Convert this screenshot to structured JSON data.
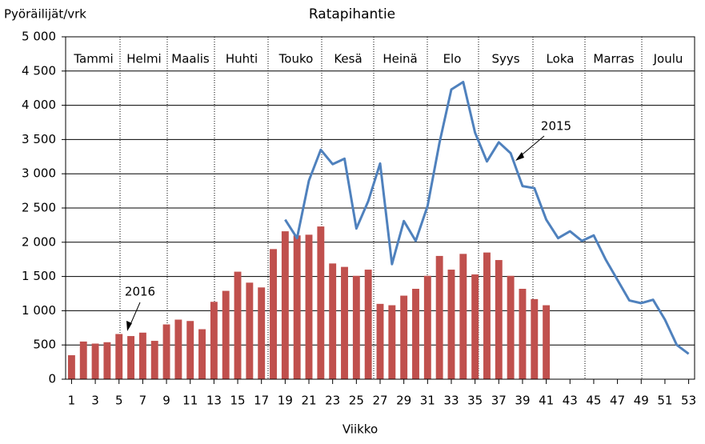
{
  "chart_data": {
    "type": "bar-line",
    "title": "Ratapihantie",
    "y_label": "Pyöräilijät/vrk",
    "x_label": "Viikko",
    "months": [
      "Tammi",
      "Helmi",
      "Maalis",
      "Huhti",
      "Touko",
      "Kesä",
      "Heinä",
      "Elo",
      "Syys",
      "Loka",
      "Marras",
      "Joulu"
    ],
    "annotations": [
      "2015",
      "2016"
    ],
    "x": [
      1,
      2,
      3,
      4,
      5,
      6,
      7,
      8,
      9,
      10,
      11,
      12,
      13,
      14,
      15,
      16,
      17,
      18,
      19,
      20,
      21,
      22,
      23,
      24,
      25,
      26,
      27,
      28,
      29,
      30,
      31,
      32,
      33,
      34,
      35,
      36,
      37,
      38,
      39,
      40,
      41,
      42,
      43,
      44,
      45,
      46,
      47,
      48,
      49,
      50,
      51,
      52,
      53
    ],
    "xlim": [
      0.5,
      53.5
    ],
    "xticks": [
      1,
      3,
      5,
      7,
      9,
      11,
      13,
      15,
      17,
      19,
      21,
      23,
      25,
      27,
      29,
      31,
      33,
      35,
      37,
      39,
      41,
      43,
      45,
      47,
      49,
      51,
      53
    ],
    "ylim": [
      0,
      5000
    ],
    "yticks": [
      0,
      {
        "value": 500,
        "label": "500"
      },
      {
        "value": 1000,
        "label": "1 000"
      },
      {
        "value": 1500,
        "label": "1 500"
      },
      {
        "value": 2000,
        "label": "2 000"
      },
      {
        "value": 2500,
        "label": "2 500"
      },
      {
        "value": 3000,
        "label": "3 000"
      },
      {
        "value": 3500,
        "label": "3 500"
      },
      {
        "value": 4000,
        "label": "4 000"
      },
      {
        "value": 4500,
        "label": "4 500"
      },
      {
        "value": 5000,
        "label": "5 000"
      }
    ],
    "grid": true,
    "series": [
      {
        "name": "2016",
        "kind": "bar",
        "color": "#c0504d",
        "values": [
          350,
          550,
          520,
          540,
          660,
          630,
          680,
          560,
          800,
          870,
          850,
          730,
          1130,
          1290,
          1570,
          1410,
          1340,
          1900,
          2160,
          2100,
          2110,
          2230,
          1690,
          1640,
          1510,
          1600,
          1100,
          1080,
          1220,
          1320,
          1510,
          1800,
          1600,
          1830,
          1530,
          1850,
          1740,
          1510,
          1320,
          1170,
          1080,
          null,
          null,
          null,
          null,
          null,
          null,
          null,
          null,
          null,
          null,
          null,
          null
        ]
      },
      {
        "name": "2015",
        "kind": "line",
        "color": "#4f81bd",
        "values": [
          null,
          null,
          null,
          null,
          null,
          null,
          null,
          null,
          null,
          null,
          null,
          null,
          null,
          null,
          null,
          null,
          null,
          null,
          2330,
          2060,
          2900,
          3350,
          3140,
          3220,
          2200,
          2600,
          3150,
          1680,
          2310,
          2020,
          2530,
          3450,
          4230,
          4340,
          3600,
          3180,
          3460,
          3300,
          2820,
          2790,
          2330,
          2060,
          2160,
          2020,
          2100,
          1750,
          1450,
          1150,
          1110,
          1160,
          870,
          500,
          370
        ]
      }
    ]
  }
}
